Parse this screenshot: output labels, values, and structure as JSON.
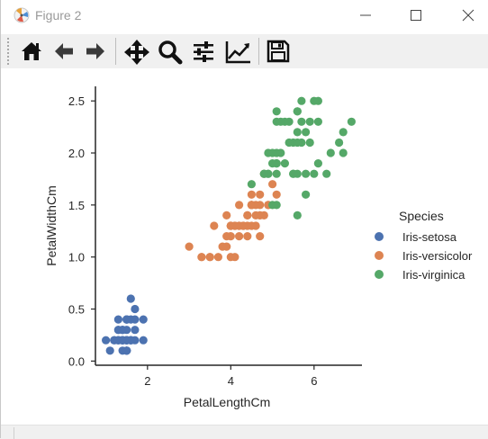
{
  "window": {
    "title": "Figure 2",
    "icon": "matplotlib-figure-icon",
    "controls": [
      "minimize-icon",
      "maximize-icon",
      "close-icon"
    ]
  },
  "toolbar": {
    "tools": [
      {
        "name": "home-button",
        "icon": "home-icon"
      },
      {
        "name": "back-button",
        "icon": "arrow-left-icon"
      },
      {
        "name": "forward-button",
        "icon": "arrow-right-icon"
      },
      {
        "name": "pan-button",
        "icon": "move-arrows-icon"
      },
      {
        "name": "zoom-button",
        "icon": "magnifier-icon"
      },
      {
        "name": "subplots-button",
        "icon": "sliders-icon"
      },
      {
        "name": "axes-edit-button",
        "icon": "line-chart-icon"
      },
      {
        "name": "save-button",
        "icon": "floppy-disk-icon"
      }
    ]
  },
  "colors": {
    "setosa": "#4c72b0",
    "versicolor": "#dd8452",
    "virginica": "#55a868"
  },
  "chart_data": {
    "type": "scatter",
    "xlabel": "PetalLengthCm",
    "ylabel": "PetalWidthCm",
    "xlim": [
      0.75,
      7.15
    ],
    "ylim": [
      -0.04,
      2.64
    ],
    "xticks": [
      2,
      4,
      6
    ],
    "xtick_labels": [
      "2",
      "4",
      "6"
    ],
    "yticks": [
      0.0,
      0.5,
      1.0,
      1.5,
      2.0,
      2.5
    ],
    "ytick_labels": [
      "0.0",
      "0.5",
      "1.0",
      "1.5",
      "2.0",
      "2.5"
    ],
    "grid": false,
    "legend": {
      "title": "Species",
      "position": "right outside"
    },
    "series": [
      {
        "name": "Iris-setosa",
        "color": "#4c72b0",
        "points": [
          [
            1.4,
            0.2
          ],
          [
            1.4,
            0.2
          ],
          [
            1.3,
            0.2
          ],
          [
            1.5,
            0.2
          ],
          [
            1.4,
            0.2
          ],
          [
            1.7,
            0.4
          ],
          [
            1.4,
            0.3
          ],
          [
            1.5,
            0.2
          ],
          [
            1.4,
            0.2
          ],
          [
            1.5,
            0.1
          ],
          [
            1.5,
            0.2
          ],
          [
            1.6,
            0.2
          ],
          [
            1.4,
            0.1
          ],
          [
            1.1,
            0.1
          ],
          [
            1.2,
            0.2
          ],
          [
            1.5,
            0.4
          ],
          [
            1.3,
            0.4
          ],
          [
            1.4,
            0.3
          ],
          [
            1.7,
            0.3
          ],
          [
            1.5,
            0.3
          ],
          [
            1.7,
            0.2
          ],
          [
            1.5,
            0.4
          ],
          [
            1.0,
            0.2
          ],
          [
            1.7,
            0.5
          ],
          [
            1.9,
            0.2
          ],
          [
            1.6,
            0.2
          ],
          [
            1.6,
            0.4
          ],
          [
            1.5,
            0.2
          ],
          [
            1.4,
            0.2
          ],
          [
            1.6,
            0.2
          ],
          [
            1.6,
            0.2
          ],
          [
            1.5,
            0.4
          ],
          [
            1.5,
            0.1
          ],
          [
            1.4,
            0.2
          ],
          [
            1.5,
            0.1
          ],
          [
            1.2,
            0.2
          ],
          [
            1.3,
            0.2
          ],
          [
            1.5,
            0.1
          ],
          [
            1.3,
            0.2
          ],
          [
            1.5,
            0.2
          ],
          [
            1.3,
            0.3
          ],
          [
            1.3,
            0.3
          ],
          [
            1.3,
            0.2
          ],
          [
            1.6,
            0.6
          ],
          [
            1.9,
            0.4
          ],
          [
            1.4,
            0.3
          ],
          [
            1.6,
            0.2
          ],
          [
            1.4,
            0.2
          ],
          [
            1.5,
            0.2
          ],
          [
            1.4,
            0.2
          ]
        ]
      },
      {
        "name": "Iris-versicolor",
        "color": "#dd8452",
        "points": [
          [
            4.7,
            1.4
          ],
          [
            4.5,
            1.5
          ],
          [
            4.9,
            1.5
          ],
          [
            4.0,
            1.3
          ],
          [
            4.6,
            1.5
          ],
          [
            4.5,
            1.3
          ],
          [
            4.7,
            1.6
          ],
          [
            3.3,
            1.0
          ],
          [
            4.6,
            1.3
          ],
          [
            3.9,
            1.4
          ],
          [
            3.5,
            1.0
          ],
          [
            4.2,
            1.5
          ],
          [
            4.0,
            1.0
          ],
          [
            4.7,
            1.4
          ],
          [
            3.6,
            1.3
          ],
          [
            4.4,
            1.4
          ],
          [
            4.5,
            1.5
          ],
          [
            4.1,
            1.0
          ],
          [
            4.5,
            1.5
          ],
          [
            3.9,
            1.1
          ],
          [
            4.8,
            1.8
          ],
          [
            4.0,
            1.3
          ],
          [
            4.9,
            1.5
          ],
          [
            4.7,
            1.2
          ],
          [
            4.3,
            1.3
          ],
          [
            4.4,
            1.4
          ],
          [
            4.8,
            1.4
          ],
          [
            5.0,
            1.7
          ],
          [
            4.5,
            1.5
          ],
          [
            3.5,
            1.0
          ],
          [
            3.8,
            1.1
          ],
          [
            3.7,
            1.0
          ],
          [
            3.9,
            1.2
          ],
          [
            5.1,
            1.6
          ],
          [
            4.5,
            1.5
          ],
          [
            4.5,
            1.6
          ],
          [
            4.7,
            1.5
          ],
          [
            4.4,
            1.3
          ],
          [
            4.1,
            1.3
          ],
          [
            4.0,
            1.3
          ],
          [
            4.4,
            1.2
          ],
          [
            4.6,
            1.4
          ],
          [
            4.0,
            1.2
          ],
          [
            3.3,
            1.0
          ],
          [
            4.2,
            1.3
          ],
          [
            4.2,
            1.2
          ],
          [
            4.2,
            1.3
          ],
          [
            4.3,
            1.3
          ],
          [
            3.0,
            1.1
          ],
          [
            4.1,
            1.3
          ]
        ]
      },
      {
        "name": "Iris-virginica",
        "color": "#55a868",
        "points": [
          [
            6.0,
            2.5
          ],
          [
            5.1,
            1.9
          ],
          [
            5.9,
            2.1
          ],
          [
            5.6,
            1.8
          ],
          [
            5.8,
            2.2
          ],
          [
            6.6,
            2.1
          ],
          [
            4.5,
            1.7
          ],
          [
            6.3,
            1.8
          ],
          [
            5.8,
            1.8
          ],
          [
            6.1,
            2.5
          ],
          [
            5.1,
            2.0
          ],
          [
            5.3,
            1.9
          ],
          [
            5.5,
            2.1
          ],
          [
            5.0,
            2.0
          ],
          [
            5.1,
            2.4
          ],
          [
            5.3,
            2.3
          ],
          [
            5.5,
            1.8
          ],
          [
            6.7,
            2.2
          ],
          [
            6.9,
            2.3
          ],
          [
            5.0,
            1.5
          ],
          [
            5.7,
            2.3
          ],
          [
            4.9,
            2.0
          ],
          [
            6.7,
            2.0
          ],
          [
            4.9,
            1.8
          ],
          [
            5.7,
            2.1
          ],
          [
            6.0,
            1.8
          ],
          [
            4.8,
            1.8
          ],
          [
            4.9,
            1.8
          ],
          [
            5.6,
            2.1
          ],
          [
            5.8,
            1.6
          ],
          [
            6.1,
            1.9
          ],
          [
            6.4,
            2.0
          ],
          [
            5.6,
            2.2
          ],
          [
            5.1,
            1.5
          ],
          [
            5.6,
            1.4
          ],
          [
            6.1,
            2.3
          ],
          [
            5.6,
            2.4
          ],
          [
            5.5,
            1.8
          ],
          [
            4.8,
            1.8
          ],
          [
            5.4,
            2.1
          ],
          [
            5.6,
            2.4
          ],
          [
            5.1,
            2.3
          ],
          [
            5.1,
            1.9
          ],
          [
            5.9,
            2.3
          ],
          [
            5.7,
            2.5
          ],
          [
            5.2,
            2.3
          ],
          [
            5.0,
            1.9
          ],
          [
            5.2,
            2.0
          ],
          [
            5.4,
            2.3
          ],
          [
            5.1,
            1.8
          ]
        ]
      }
    ]
  }
}
